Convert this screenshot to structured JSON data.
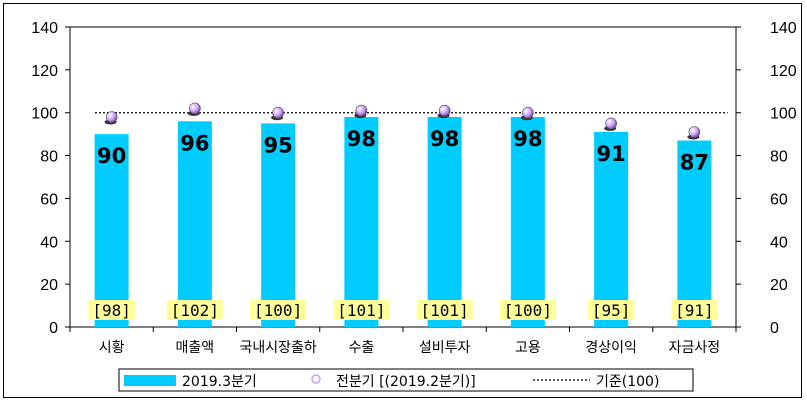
{
  "chart_data": {
    "type": "bar",
    "categories": [
      "시황",
      "매출액",
      "국내시장출하",
      "수출",
      "설비투자",
      "고용",
      "경상이익",
      "자금사정"
    ],
    "series": [
      {
        "name": "2019.3분기",
        "type": "bar",
        "values": [
          90,
          96,
          95,
          98,
          98,
          98,
          91,
          87
        ],
        "color": "#00ccff"
      },
      {
        "name": "전분기 [(2019.2분기)]",
        "type": "scatter",
        "values": [
          98,
          102,
          100,
          101,
          101,
          100,
          95,
          91
        ],
        "color": "#cc99ff"
      },
      {
        "name": "기준(100)",
        "type": "line",
        "value": 100,
        "color": "#000000"
      }
    ],
    "previous_labels": [
      "[98]",
      "[102]",
      "[100]",
      "[101]",
      "[101]",
      "[100]",
      "[95]",
      "[91]"
    ],
    "ylim": [
      0,
      140
    ],
    "yticks": [
      0,
      20,
      40,
      60,
      80,
      100,
      120,
      140
    ],
    "secondary_ylim": [
      0,
      140
    ],
    "grid": false,
    "legend": "bottom",
    "label_box_color": "#ffff99"
  }
}
